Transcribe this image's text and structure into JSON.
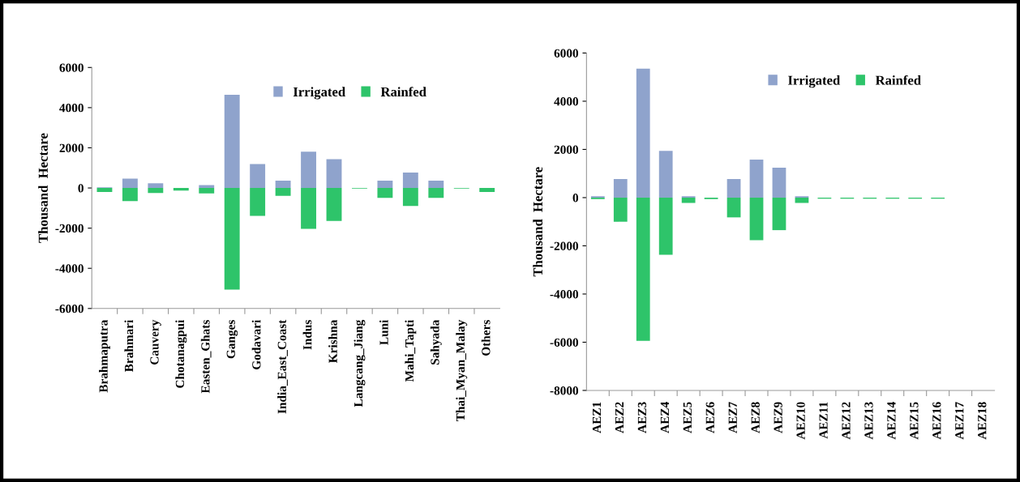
{
  "chart_data": [
    {
      "type": "bar",
      "ylabel": "Thousand  Hectare",
      "stacked": true,
      "legend": "top right",
      "grid": false,
      "categories": [
        "Brahmaputra",
        "Brahmari",
        "Cauvery",
        "Chotanagpui",
        "Easten_Ghats",
        "Ganges",
        "Godavari",
        "India_East_Coast",
        "Indus",
        "Krishna",
        "Langcang_Jiang",
        "Luni",
        "Mahi_Tapti",
        "Sahyada",
        "Thai_Myan_Malay",
        "Others"
      ],
      "series": [
        {
          "name": "Irrigated",
          "color": "#8fa3cc",
          "values": [
            30,
            470,
            230,
            null,
            140,
            4640,
            1190,
            370,
            1810,
            1430,
            null,
            370,
            770,
            370,
            null,
            null
          ]
        },
        {
          "name": "Rainfed",
          "color": "#2ec46a",
          "values": [
            -200,
            -650,
            -250,
            -130,
            -270,
            -5060,
            -1390,
            -390,
            -2030,
            -1640,
            -30,
            -490,
            -900,
            -490,
            -30,
            -200
          ]
        }
      ],
      "ylim": [
        -6000,
        6000
      ],
      "yticks": [
        -6000,
        -4000,
        -2000,
        0,
        2000,
        4000,
        6000
      ]
    },
    {
      "type": "bar",
      "ylabel": "Thousand  Hectare",
      "stacked": true,
      "legend": "top right",
      "grid": false,
      "categories": [
        "AEZ1",
        "AEZ2",
        "AEZ3",
        "AEZ4",
        "AEZ5",
        "AEZ6",
        "AEZ7",
        "AEZ8",
        "AEZ9",
        "AEZ10",
        "AEZ11",
        "AEZ12",
        "AEZ13",
        "AEZ14",
        "AEZ15",
        "AEZ16",
        "AEZ17",
        "AEZ18"
      ],
      "series": [
        {
          "name": "Irrigated",
          "color": "#8fa3cc",
          "values": [
            60,
            770,
            5350,
            1940,
            60,
            null,
            770,
            1580,
            1240,
            60,
            null,
            null,
            null,
            null,
            null,
            null,
            null,
            null
          ]
        },
        {
          "name": "Rainfed",
          "color": "#2ec46a",
          "values": [
            -60,
            -1000,
            -5940,
            -2370,
            -220,
            -60,
            -820,
            -1770,
            -1350,
            -220,
            -40,
            -40,
            -40,
            -40,
            -40,
            -40,
            null,
            null
          ]
        }
      ],
      "ylim": [
        -8000,
        6000
      ],
      "yticks": [
        -8000,
        -6000,
        -4000,
        -2000,
        0,
        2000,
        4000,
        6000
      ]
    }
  ]
}
